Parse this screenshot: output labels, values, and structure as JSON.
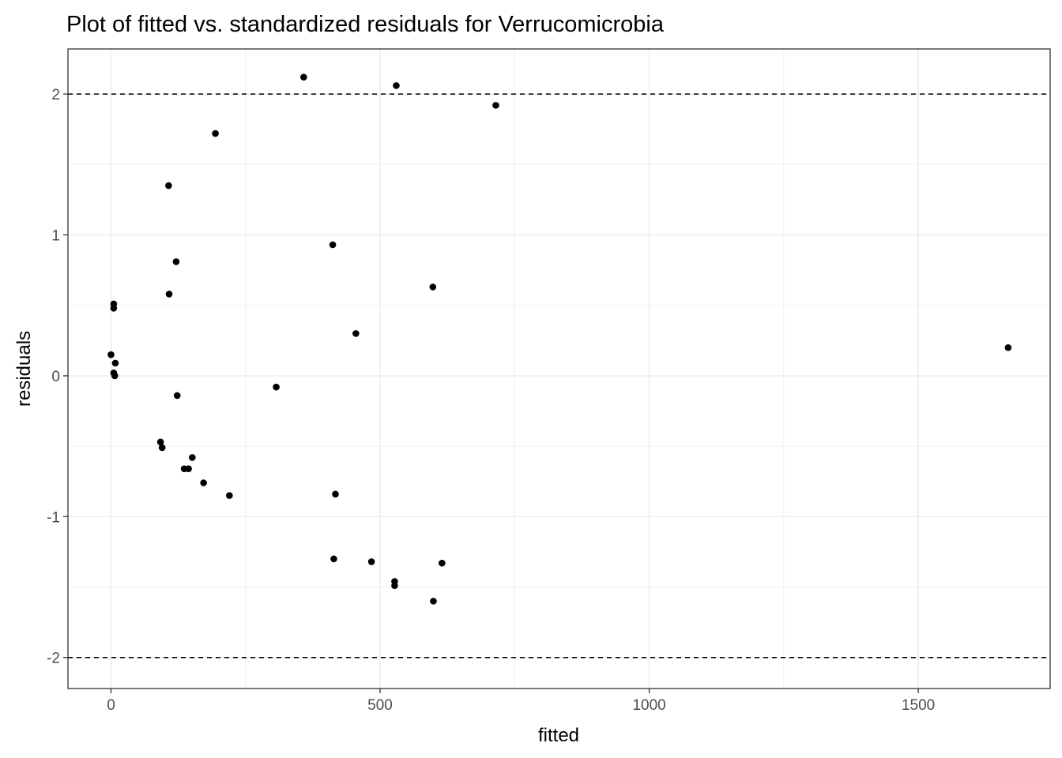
{
  "chart_data": {
    "type": "scatter",
    "title": "Plot of fitted vs. standardized residuals for Verrucomicrobia",
    "xlabel": "fitted",
    "ylabel": "residuals",
    "xlim": [
      -80,
      1745
    ],
    "ylim": [
      -2.22,
      2.32
    ],
    "x_ticks": [
      0,
      500,
      1000,
      1500
    ],
    "x_tick_labels": [
      "0",
      "500",
      "1000",
      "1500"
    ],
    "y_ticks": [
      -2,
      -1,
      0,
      1,
      2
    ],
    "y_tick_labels": [
      "-2",
      "-1",
      "0",
      "1",
      "2"
    ],
    "grid": true,
    "reference_lines": [
      {
        "y": 2,
        "style": "dashed"
      },
      {
        "y": -2,
        "style": "dashed"
      }
    ],
    "point_color": "#000000",
    "points": [
      {
        "x": 0,
        "y": 0.15
      },
      {
        "x": 5,
        "y": 0.51
      },
      {
        "x": 5,
        "y": 0.48
      },
      {
        "x": 8,
        "y": 0.09
      },
      {
        "x": 5,
        "y": 0.02
      },
      {
        "x": 7,
        "y": 0.0
      },
      {
        "x": 92,
        "y": -0.47
      },
      {
        "x": 95,
        "y": -0.51
      },
      {
        "x": 107,
        "y": 1.35
      },
      {
        "x": 108,
        "y": 0.58
      },
      {
        "x": 121,
        "y": 0.81
      },
      {
        "x": 123,
        "y": -0.14
      },
      {
        "x": 136,
        "y": -0.66
      },
      {
        "x": 144,
        "y": -0.66
      },
      {
        "x": 151,
        "y": -0.58
      },
      {
        "x": 172,
        "y": -0.76
      },
      {
        "x": 194,
        "y": 1.72
      },
      {
        "x": 220,
        "y": -0.85
      },
      {
        "x": 307,
        "y": -0.08
      },
      {
        "x": 358,
        "y": 2.12
      },
      {
        "x": 412,
        "y": 0.93
      },
      {
        "x": 414,
        "y": -1.3
      },
      {
        "x": 417,
        "y": -0.84
      },
      {
        "x": 455,
        "y": 0.3
      },
      {
        "x": 484,
        "y": -1.32
      },
      {
        "x": 527,
        "y": -1.46
      },
      {
        "x": 527,
        "y": -1.49
      },
      {
        "x": 530,
        "y": 2.06
      },
      {
        "x": 598,
        "y": 0.63
      },
      {
        "x": 599,
        "y": -1.6
      },
      {
        "x": 615,
        "y": -1.33
      },
      {
        "x": 715,
        "y": 1.92
      },
      {
        "x": 1667,
        "y": 0.2
      }
    ]
  }
}
